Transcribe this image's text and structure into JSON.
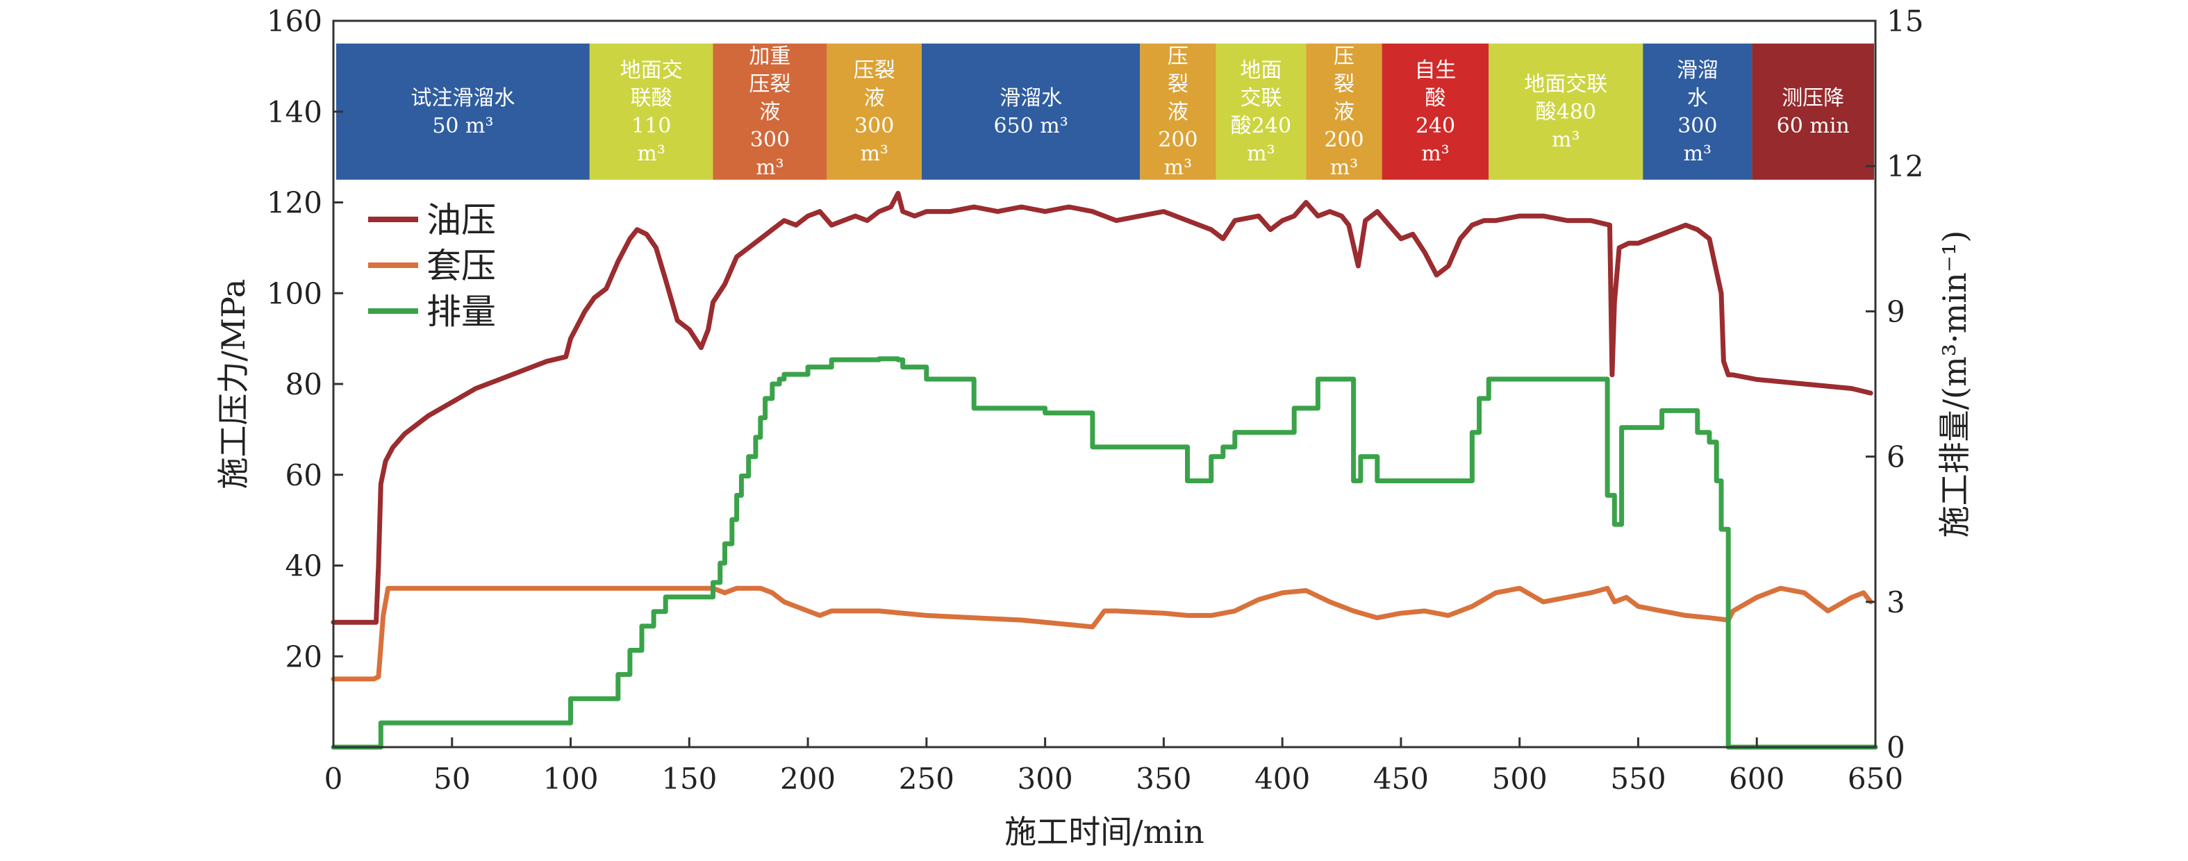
{
  "chart_data": {
    "type": "line",
    "xlabel": "施工时间/min",
    "ylabel_left": "施工压力/MPa",
    "ylabel_right": "施工排量/(m³·min⁻¹)",
    "xlim": [
      0,
      650
    ],
    "ylim_left": [
      0,
      160
    ],
    "ylim_right": [
      0,
      15
    ],
    "x_ticks": [
      0,
      50,
      100,
      150,
      200,
      250,
      300,
      350,
      400,
      450,
      500,
      550,
      600,
      650
    ],
    "y_left_ticks": [
      20,
      40,
      60,
      80,
      100,
      120,
      140,
      160
    ],
    "y_right_ticks": [
      0,
      3,
      6,
      9,
      12,
      15
    ],
    "grid": false,
    "legend_position": "top-left",
    "stages": [
      {
        "start": 0,
        "end": 108,
        "lines": [
          "试注滑溜水",
          "50 m³"
        ],
        "color": "#2f5d9f",
        "text_color": "#ffffff"
      },
      {
        "start": 108,
        "end": 160,
        "lines": [
          "地面交",
          "联酸",
          "110",
          "m³"
        ],
        "color": "#cdd441",
        "text_color": "#ffffff"
      },
      {
        "start": 160,
        "end": 208,
        "lines": [
          "加重",
          "压裂",
          "液",
          "300",
          "m³"
        ],
        "color": "#d2693a",
        "text_color": "#ffffff"
      },
      {
        "start": 208,
        "end": 248,
        "lines": [
          "压裂",
          "液",
          "300",
          "m³"
        ],
        "color": "#dca236",
        "text_color": "#ffffff"
      },
      {
        "start": 248,
        "end": 340,
        "lines": [
          "滑溜水",
          "650 m³"
        ],
        "color": "#2f5d9f",
        "text_color": "#ffffff"
      },
      {
        "start": 340,
        "end": 372,
        "lines": [
          "压",
          "裂",
          "液",
          "200",
          "m³"
        ],
        "color": "#dca236",
        "text_color": "#ffffff"
      },
      {
        "start": 372,
        "end": 410,
        "lines": [
          "地面",
          "交联",
          "酸240",
          "m³"
        ],
        "color": "#cdd441",
        "text_color": "#ffffff"
      },
      {
        "start": 410,
        "end": 442,
        "lines": [
          "压",
          "裂",
          "液",
          "200",
          "m³"
        ],
        "color": "#dca236",
        "text_color": "#ffffff"
      },
      {
        "start": 442,
        "end": 487,
        "lines": [
          "自生",
          "酸",
          "240",
          "m³"
        ],
        "color": "#d12a2a",
        "text_color": "#ffffff"
      },
      {
        "start": 487,
        "end": 552,
        "lines": [
          "地面交联",
          "酸480",
          "m³"
        ],
        "color": "#cdd441",
        "text_color": "#ffffff"
      },
      {
        "start": 552,
        "end": 598,
        "lines": [
          "滑溜",
          "水",
          "300",
          "m³"
        ],
        "color": "#2f5d9f",
        "text_color": "#ffffff"
      },
      {
        "start": 598,
        "end": 660,
        "lines": [
          "测压降",
          "60 min"
        ],
        "color": "#962a2c",
        "text_color": "#ffffff"
      }
    ],
    "series": [
      {
        "name": "油压",
        "axis": "left",
        "color": "#9b2c2f",
        "x": [
          0,
          18,
          19,
          20,
          22,
          25,
          30,
          40,
          50,
          60,
          70,
          80,
          90,
          98,
          100,
          103,
          106,
          110,
          115,
          120,
          125,
          128,
          132,
          136,
          140,
          145,
          150,
          155,
          158,
          160,
          165,
          170,
          175,
          180,
          185,
          190,
          195,
          200,
          205,
          210,
          215,
          220,
          225,
          230,
          235,
          238,
          240,
          245,
          250,
          260,
          270,
          280,
          290,
          300,
          310,
          320,
          325,
          330,
          340,
          350,
          360,
          370,
          375,
          380,
          390,
          395,
          400,
          405,
          410,
          415,
          420,
          425,
          428,
          432,
          435,
          440,
          445,
          450,
          455,
          460,
          465,
          470,
          475,
          480,
          485,
          490,
          500,
          510,
          520,
          530,
          538,
          539,
          540,
          542,
          546,
          550,
          555,
          560,
          565,
          570,
          575,
          580,
          585,
          586,
          588,
          590,
          600,
          620,
          640,
          648
        ],
        "y": [
          27.5,
          27.5,
          40,
          58,
          63,
          66,
          69,
          73,
          76,
          79,
          81,
          83,
          85,
          86,
          90,
          93,
          96,
          99,
          101,
          107,
          112,
          114,
          113,
          110,
          103,
          94,
          92,
          88,
          92,
          98,
          102,
          108,
          110,
          112,
          114,
          116,
          115,
          117,
          118,
          115,
          116,
          117,
          116,
          118,
          119,
          122,
          118,
          117,
          118,
          118,
          119,
          118,
          119,
          118,
          119,
          118,
          117,
          116,
          117,
          118,
          116,
          114,
          112,
          116,
          117,
          114,
          116,
          117,
          120,
          117,
          118,
          117,
          115,
          106,
          116,
          118,
          115,
          112,
          113,
          109,
          104,
          106,
          112,
          115,
          116,
          116,
          117,
          117,
          116,
          116,
          115,
          82,
          98,
          110,
          111,
          111,
          112,
          113,
          114,
          115,
          114,
          112,
          100,
          85,
          82,
          82,
          81,
          80,
          79,
          78
        ]
      },
      {
        "name": "套压",
        "axis": "left",
        "color": "#d9713b",
        "x": [
          0,
          17,
          19,
          21,
          23,
          40,
          60,
          80,
          100,
          120,
          140,
          160,
          165,
          170,
          180,
          185,
          190,
          200,
          205,
          210,
          230,
          250,
          270,
          290,
          310,
          320,
          325,
          330,
          350,
          360,
          370,
          380,
          390,
          400,
          410,
          420,
          430,
          440,
          450,
          460,
          470,
          480,
          490,
          500,
          510,
          520,
          530,
          537,
          540,
          545,
          550,
          560,
          570,
          580,
          588,
          590,
          600,
          610,
          620,
          625,
          630,
          640,
          645,
          648
        ],
        "y": [
          15,
          15,
          15.5,
          29,
          35,
          35,
          35,
          35,
          35,
          35,
          35,
          35,
          34,
          35,
          35,
          34,
          32,
          30,
          29,
          30,
          30,
          29,
          28.5,
          28,
          27,
          26.5,
          30,
          30,
          29.5,
          29,
          29,
          30,
          32.5,
          34,
          34.5,
          32,
          30,
          28.5,
          29.5,
          30,
          29,
          31,
          34,
          35,
          32,
          33,
          34,
          35,
          32,
          33,
          31,
          30,
          29,
          28.5,
          28,
          30,
          33,
          35,
          34,
          32,
          30,
          33,
          34,
          32
        ]
      },
      {
        "name": "排量",
        "axis": "right",
        "color": "#3aa34a",
        "x": [
          0,
          20,
          20,
          100,
          100,
          120,
          120,
          125,
          125,
          130,
          130,
          135,
          135,
          140,
          140,
          160,
          160,
          163,
          163,
          165,
          165,
          168,
          168,
          170,
          170,
          172,
          172,
          175,
          175,
          178,
          178,
          180,
          180,
          182,
          182,
          185,
          185,
          188,
          188,
          190,
          190,
          200,
          200,
          210,
          210,
          230,
          230,
          238,
          238,
          240,
          240,
          250,
          250,
          270,
          270,
          300,
          300,
          320,
          320,
          360,
          360,
          370,
          370,
          375,
          375,
          380,
          380,
          395,
          395,
          405,
          405,
          415,
          415,
          430,
          430,
          433,
          433,
          435,
          435,
          440,
          440,
          460,
          460,
          480,
          480,
          483,
          483,
          487,
          487,
          537,
          537,
          540,
          540,
          543,
          543,
          550,
          550,
          560,
          560,
          575,
          575,
          580,
          580,
          583,
          583,
          585,
          585,
          588,
          588,
          590,
          590,
          650
        ],
        "y": [
          0,
          0,
          0.5,
          0.5,
          1.0,
          1.0,
          1.5,
          1.5,
          2.0,
          2.0,
          2.5,
          2.5,
          2.8,
          2.8,
          3.1,
          3.1,
          3.4,
          3.4,
          3.8,
          3.8,
          4.2,
          4.2,
          4.7,
          4.7,
          5.2,
          5.2,
          5.6,
          5.6,
          6.0,
          6.0,
          6.4,
          6.4,
          6.8,
          6.8,
          7.2,
          7.2,
          7.5,
          7.5,
          7.6,
          7.6,
          7.7,
          7.7,
          7.85,
          7.85,
          8.0,
          8.0,
          8.02,
          8.02,
          8.0,
          8.0,
          7.85,
          7.85,
          7.6,
          7.6,
          7.0,
          7.0,
          6.9,
          6.9,
          6.2,
          6.2,
          5.5,
          5.5,
          6.0,
          6.0,
          6.2,
          6.2,
          6.5,
          6.5,
          6.5,
          6.5,
          7.0,
          7.0,
          7.6,
          7.6,
          5.5,
          5.5,
          6.0,
          6.0,
          6.0,
          6.0,
          5.5,
          5.5,
          5.5,
          5.5,
          6.5,
          6.5,
          7.2,
          7.2,
          7.6,
          7.6,
          5.2,
          5.2,
          4.6,
          4.6,
          6.6,
          6.6,
          6.6,
          6.6,
          6.95,
          6.95,
          6.5,
          6.5,
          6.3,
          6.3,
          5.5,
          5.5,
          4.5,
          4.5,
          0,
          0,
          0,
          0
        ]
      }
    ]
  }
}
